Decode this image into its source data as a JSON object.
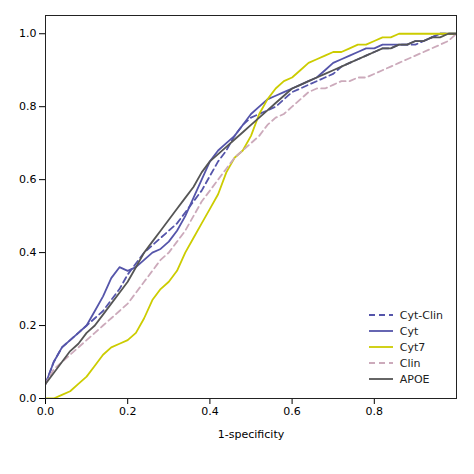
{
  "chart_data": {
    "type": "line",
    "xlabel": "1-specificity",
    "x": [
      0.0,
      0.02,
      0.04,
      0.06,
      0.08,
      0.1,
      0.12,
      0.14,
      0.16,
      0.18,
      0.2,
      0.22,
      0.24,
      0.26,
      0.28,
      0.3,
      0.32,
      0.34,
      0.36,
      0.38,
      0.4,
      0.42,
      0.44,
      0.46,
      0.48,
      0.5,
      0.52,
      0.54,
      0.56,
      0.58,
      0.6,
      0.62,
      0.64,
      0.66,
      0.68,
      0.7,
      0.72,
      0.74,
      0.76,
      0.78,
      0.8,
      0.82,
      0.84,
      0.86,
      0.88,
      0.9,
      0.92,
      0.94,
      0.96,
      0.98,
      1.0
    ],
    "series": [
      {
        "name": "Cyt-Clin",
        "color": "#5555aa",
        "line_style": "dashed",
        "values": [
          0.04,
          0.1,
          0.14,
          0.16,
          0.18,
          0.2,
          0.22,
          0.24,
          0.27,
          0.3,
          0.34,
          0.37,
          0.4,
          0.42,
          0.44,
          0.46,
          0.48,
          0.51,
          0.54,
          0.57,
          0.61,
          0.65,
          0.68,
          0.72,
          0.75,
          0.77,
          0.78,
          0.79,
          0.8,
          0.82,
          0.84,
          0.85,
          0.86,
          0.87,
          0.88,
          0.89,
          0.91,
          0.92,
          0.93,
          0.94,
          0.95,
          0.96,
          0.96,
          0.97,
          0.97,
          0.97,
          0.98,
          0.99,
          1.0,
          1.0,
          1.0
        ]
      },
      {
        "name": "Cyt",
        "color": "#5555aa",
        "line_style": "solid",
        "values": [
          0.04,
          0.1,
          0.14,
          0.16,
          0.18,
          0.2,
          0.24,
          0.28,
          0.33,
          0.36,
          0.35,
          0.36,
          0.38,
          0.4,
          0.41,
          0.43,
          0.46,
          0.5,
          0.55,
          0.6,
          0.65,
          0.68,
          0.7,
          0.72,
          0.75,
          0.78,
          0.8,
          0.82,
          0.83,
          0.84,
          0.85,
          0.86,
          0.87,
          0.88,
          0.9,
          0.92,
          0.93,
          0.94,
          0.95,
          0.96,
          0.96,
          0.97,
          0.97,
          0.97,
          0.97,
          0.98,
          0.98,
          0.99,
          1.0,
          1.0,
          1.0
        ]
      },
      {
        "name": "Cyt7",
        "color": "#cccc00",
        "line_style": "solid",
        "values": [
          0.0,
          0.0,
          0.01,
          0.02,
          0.04,
          0.06,
          0.09,
          0.12,
          0.14,
          0.15,
          0.16,
          0.18,
          0.22,
          0.27,
          0.3,
          0.32,
          0.35,
          0.4,
          0.44,
          0.48,
          0.52,
          0.56,
          0.62,
          0.66,
          0.68,
          0.72,
          0.78,
          0.82,
          0.85,
          0.87,
          0.88,
          0.9,
          0.92,
          0.93,
          0.94,
          0.95,
          0.95,
          0.96,
          0.97,
          0.97,
          0.98,
          0.99,
          0.99,
          1.0,
          1.0,
          1.0,
          1.0,
          1.0,
          1.0,
          1.0,
          1.0
        ]
      },
      {
        "name": "Clin",
        "color": "#ccaabb",
        "line_style": "dashed",
        "values": [
          0.04,
          0.08,
          0.1,
          0.12,
          0.14,
          0.16,
          0.18,
          0.2,
          0.22,
          0.24,
          0.26,
          0.29,
          0.32,
          0.35,
          0.38,
          0.4,
          0.43,
          0.46,
          0.5,
          0.54,
          0.57,
          0.6,
          0.63,
          0.66,
          0.68,
          0.7,
          0.72,
          0.75,
          0.77,
          0.78,
          0.8,
          0.82,
          0.84,
          0.85,
          0.85,
          0.86,
          0.87,
          0.87,
          0.88,
          0.88,
          0.89,
          0.9,
          0.91,
          0.92,
          0.93,
          0.94,
          0.95,
          0.96,
          0.97,
          0.98,
          1.0
        ]
      },
      {
        "name": "APOE",
        "color": "#555555",
        "line_style": "solid",
        "values": [
          0.04,
          0.07,
          0.1,
          0.13,
          0.15,
          0.18,
          0.2,
          0.23,
          0.26,
          0.29,
          0.32,
          0.36,
          0.4,
          0.43,
          0.46,
          0.49,
          0.52,
          0.55,
          0.58,
          0.62,
          0.65,
          0.67,
          0.69,
          0.71,
          0.73,
          0.75,
          0.77,
          0.79,
          0.81,
          0.83,
          0.85,
          0.86,
          0.87,
          0.88,
          0.89,
          0.9,
          0.91,
          0.92,
          0.93,
          0.94,
          0.95,
          0.96,
          0.96,
          0.97,
          0.97,
          0.98,
          0.98,
          0.99,
          0.99,
          1.0,
          1.0
        ]
      }
    ],
    "xlim": [
      0.0,
      1.0
    ],
    "ylim": [
      0.0,
      1.05
    ],
    "xticks": [
      {
        "value": 0,
        "label": "0.0"
      },
      0.2,
      0.4,
      0.6,
      0.8
    ],
    "yticks": [
      {
        "value": 0,
        "label": "0.0"
      },
      0.2,
      0.4,
      0.6,
      0.8,
      {
        "value": 1,
        "label": "1.0"
      }
    ],
    "grid": false,
    "legend": "lower right"
  }
}
